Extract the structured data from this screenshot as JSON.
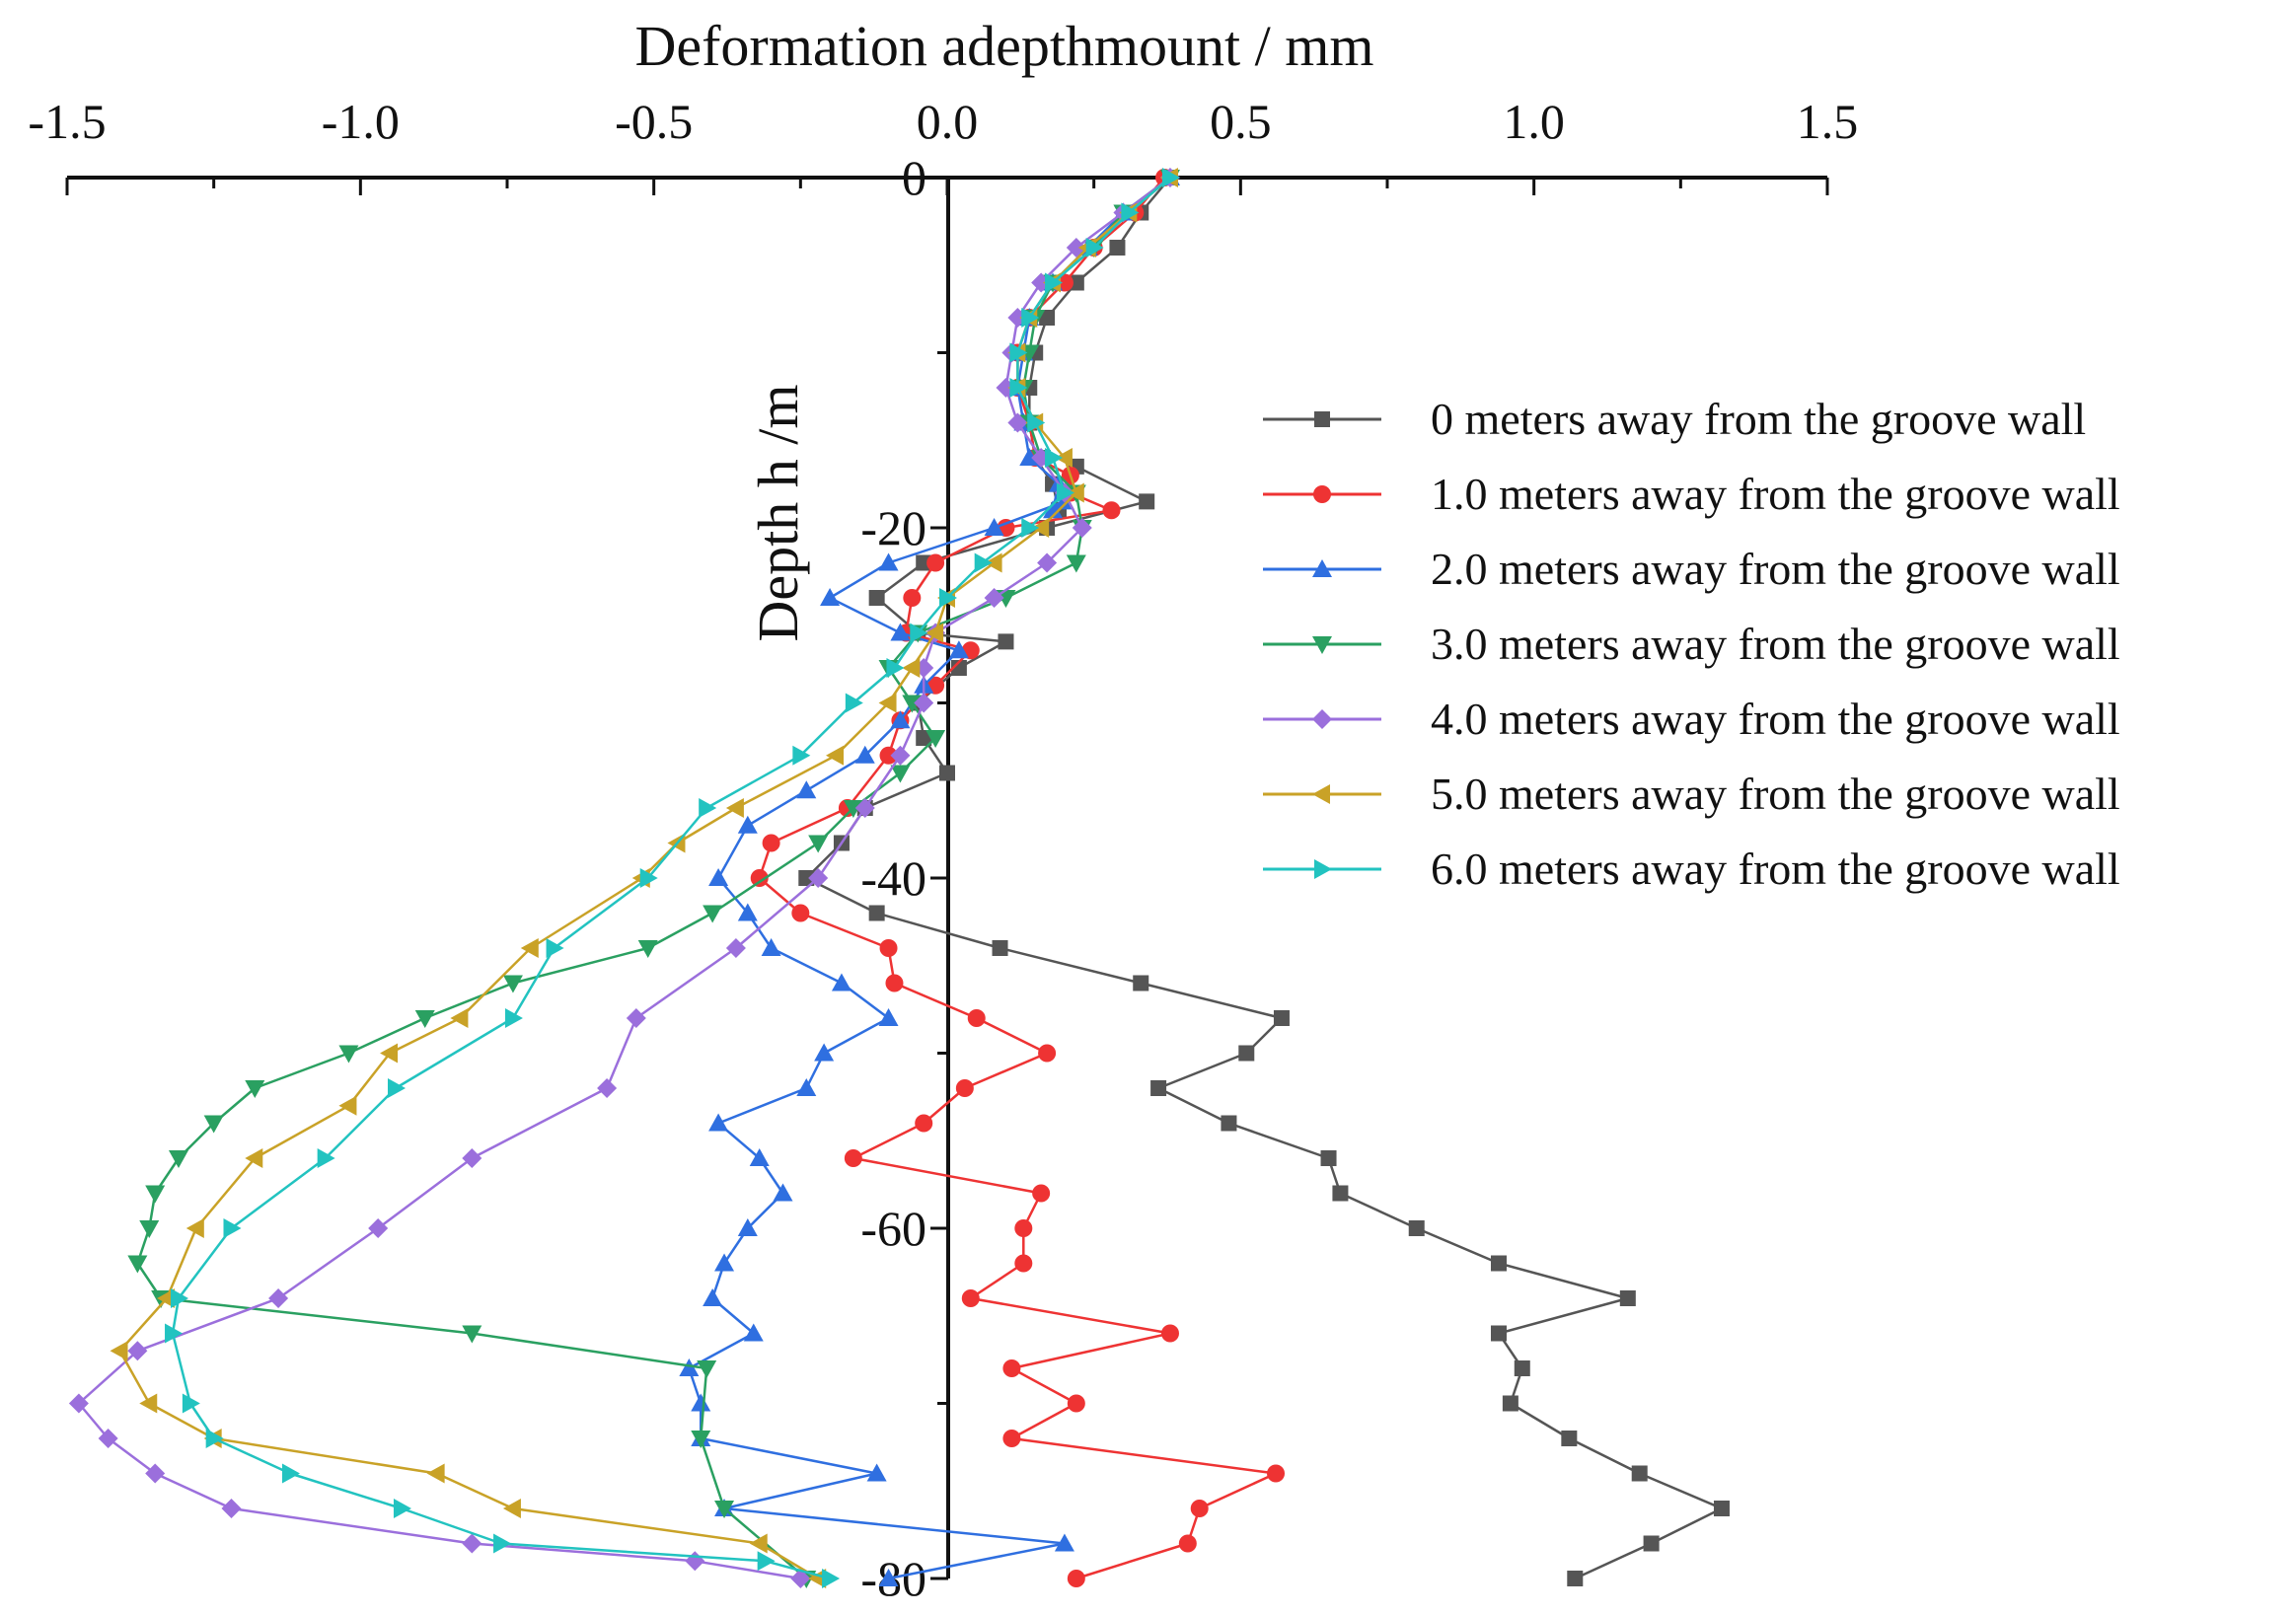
{
  "chart_data": {
    "type": "line",
    "title": "",
    "xlabel": "Deformation adepthmount / mm",
    "ylabel": "Depth h /m",
    "xlim": [
      -1.5,
      1.5
    ],
    "ylim": [
      -80,
      0
    ],
    "x_ticks": [
      -1.5,
      -1.0,
      -0.5,
      0.0,
      0.5,
      1.0,
      1.5
    ],
    "x_tick_labels": [
      "-1.5",
      "-1.0",
      "-0.5",
      "0.0",
      "0.5",
      "1.0",
      "1.5"
    ],
    "y_ticks": [
      0,
      -20,
      -40,
      -60,
      -80
    ],
    "y_tick_labels": [
      "0",
      "-20",
      "-40",
      "-60",
      "-80"
    ],
    "grid": false,
    "legend_position": "right",
    "series": [
      {
        "name": "0 meters away from the groove wall",
        "color": "#555555",
        "marker": "square",
        "x": [
          0.38,
          0.33,
          0.29,
          0.22,
          0.17,
          0.15,
          0.14,
          0.14,
          0.15,
          0.18,
          0.19,
          0.22,
          0.34,
          0.17,
          -0.04,
          -0.12,
          -0.05,
          0.1,
          0.02,
          -0.05,
          -0.04,
          0.0,
          -0.14,
          -0.18,
          -0.24,
          -0.12,
          0.09,
          0.33,
          0.57,
          0.51,
          0.36,
          0.48,
          0.65,
          0.67,
          0.8,
          0.94,
          1.16,
          0.94,
          0.98,
          0.96,
          1.06,
          1.18,
          1.32,
          1.2,
          1.07
        ],
        "y": [
          0,
          -2,
          -4,
          -6,
          -8,
          -10,
          -12,
          -14,
          -16,
          -17.5,
          -19,
          -16.5,
          -18.5,
          -20,
          -22,
          -24,
          -26,
          -26.5,
          -28,
          -30,
          -32,
          -34,
          -36,
          -38,
          -40,
          -42,
          -44,
          -46,
          -48,
          -50,
          -52,
          -54,
          -56,
          -58,
          -60,
          -62,
          -64,
          -66,
          -68,
          -70,
          -72,
          -74,
          -76,
          -78,
          -80
        ]
      },
      {
        "name": "1.0 meters away from the groove wall",
        "color": "#ee3333",
        "marker": "circle",
        "x": [
          0.37,
          0.32,
          0.25,
          0.2,
          0.14,
          0.12,
          0.12,
          0.14,
          0.15,
          0.21,
          0.21,
          0.28,
          0.1,
          -0.02,
          -0.06,
          -0.07,
          0.04,
          -0.02,
          -0.08,
          -0.1,
          -0.17,
          -0.3,
          -0.32,
          -0.25,
          -0.1,
          -0.09,
          0.05,
          0.17,
          0.03,
          -0.04,
          -0.16,
          0.16,
          0.13,
          0.13,
          0.04,
          0.38,
          0.11,
          0.22,
          0.11,
          0.56,
          0.43,
          0.41,
          0.22
        ],
        "y": [
          0,
          -2,
          -4,
          -6,
          -8,
          -10,
          -12,
          -14,
          -16,
          -17,
          -18,
          -19,
          -20,
          -22,
          -24,
          -26,
          -27,
          -29,
          -31,
          -33,
          -36,
          -38,
          -40,
          -42,
          -44,
          -46,
          -48,
          -50,
          -52,
          -54,
          -56,
          -58,
          -60,
          -62,
          -64,
          -66,
          -68,
          -70,
          -72,
          -74,
          -76,
          -78,
          -80
        ]
      },
      {
        "name": "2.0 meters away from the groove wall",
        "color": "#2f6fe0",
        "marker": "triangle-up",
        "x": [
          0.38,
          0.3,
          0.24,
          0.18,
          0.14,
          0.13,
          0.12,
          0.13,
          0.14,
          0.19,
          0.18,
          0.2,
          0.08,
          -0.1,
          -0.2,
          -0.08,
          0.02,
          -0.04,
          -0.08,
          -0.14,
          -0.24,
          -0.34,
          -0.39,
          -0.34,
          -0.3,
          -0.18,
          -0.1,
          -0.21,
          -0.24,
          -0.39,
          -0.32,
          -0.28,
          -0.34,
          -0.38,
          -0.4,
          -0.33,
          -0.44,
          -0.42,
          -0.42,
          -0.12,
          -0.38,
          0.2,
          -0.1
        ],
        "y": [
          0,
          -2,
          -4,
          -6,
          -8,
          -10,
          -12,
          -14,
          -16,
          -17.5,
          -19,
          -18.5,
          -20,
          -22,
          -24,
          -26,
          -27,
          -29,
          -31,
          -33,
          -35,
          -37,
          -40,
          -42,
          -44,
          -46,
          -48,
          -50,
          -52,
          -54,
          -56,
          -58,
          -60,
          -62,
          -64,
          -66,
          -68,
          -70,
          -72,
          -74,
          -76,
          -78,
          -80
        ]
      },
      {
        "name": "3.0 meters away from the groove wall",
        "color": "#2aa061",
        "marker": "triangle-down",
        "x": [
          0.38,
          0.3,
          0.25,
          0.18,
          0.15,
          0.14,
          0.13,
          0.14,
          0.16,
          0.22,
          0.23,
          0.22,
          0.1,
          -0.05,
          -0.1,
          -0.06,
          -0.02,
          -0.08,
          -0.16,
          -0.22,
          -0.4,
          -0.51,
          -0.74,
          -0.89,
          -1.02,
          -1.18,
          -1.25,
          -1.31,
          -1.35,
          -1.36,
          -1.38,
          -1.34,
          -0.81,
          -0.41,
          -0.42,
          -0.38,
          -0.24
        ],
        "y": [
          0,
          -2,
          -4,
          -6,
          -8,
          -10,
          -12,
          -14,
          -16,
          -18,
          -20,
          -22,
          -24,
          -26,
          -28,
          -30,
          -32,
          -34,
          -36,
          -38,
          -42,
          -44,
          -46,
          -48,
          -50,
          -52,
          -54,
          -56,
          -58,
          -60,
          -62,
          -64,
          -66,
          -68,
          -72,
          -76,
          -80
        ]
      },
      {
        "name": "4.0 meters away from the groove wall",
        "color": "#9b6fdc",
        "marker": "diamond",
        "x": [
          0.38,
          0.3,
          0.22,
          0.16,
          0.12,
          0.11,
          0.1,
          0.12,
          0.16,
          0.2,
          0.23,
          0.17,
          0.08,
          -0.02,
          -0.04,
          -0.04,
          -0.08,
          -0.14,
          -0.22,
          -0.36,
          -0.53,
          -0.58,
          -0.81,
          -0.97,
          -1.14,
          -1.38,
          -1.48,
          -1.43,
          -1.35,
          -1.22,
          -0.81,
          -0.43,
          -0.25
        ],
        "y": [
          0,
          -2,
          -4,
          -6,
          -8,
          -10,
          -12,
          -14,
          -16,
          -18,
          -20,
          -22,
          -24,
          -26,
          -28,
          -30,
          -33,
          -36,
          -40,
          -44,
          -48,
          -52,
          -56,
          -60,
          -64,
          -67,
          -70,
          -72,
          -74,
          -76,
          -78,
          -79,
          -80
        ]
      },
      {
        "name": "5.0 meters away from the groove wall",
        "color": "#c9a227",
        "marker": "triangle-left",
        "x": [
          0.38,
          0.31,
          0.24,
          0.18,
          0.14,
          0.12,
          0.12,
          0.15,
          0.2,
          0.22,
          0.16,
          0.08,
          0.0,
          -0.02,
          -0.06,
          -0.1,
          -0.19,
          -0.36,
          -0.46,
          -0.52,
          -0.71,
          -0.83,
          -0.95,
          -1.02,
          -1.18,
          -1.28,
          -1.33,
          -1.41,
          -1.36,
          -1.25,
          -0.87,
          -0.74,
          -0.32,
          -0.22
        ],
        "y": [
          0,
          -2,
          -4,
          -6,
          -8,
          -10,
          -12,
          -14,
          -16,
          -18,
          -20,
          -22,
          -24,
          -26,
          -28,
          -30,
          -33,
          -36,
          -38,
          -40,
          -44,
          -48,
          -50,
          -53,
          -56,
          -60,
          -64,
          -67,
          -70,
          -72,
          -74,
          -76,
          -78,
          -80
        ]
      },
      {
        "name": "6.0 meters away from the groove wall",
        "color": "#22c3c0",
        "marker": "triangle-right",
        "x": [
          0.38,
          0.31,
          0.25,
          0.18,
          0.14,
          0.12,
          0.12,
          0.15,
          0.18,
          0.2,
          0.14,
          0.06,
          0.0,
          -0.05,
          -0.09,
          -0.16,
          -0.25,
          -0.41,
          -0.51,
          -0.67,
          -0.74,
          -0.94,
          -1.06,
          -1.22,
          -1.31,
          -1.32,
          -1.29,
          -1.25,
          -1.12,
          -0.93,
          -0.76,
          -0.31,
          -0.2
        ],
        "y": [
          0,
          -2,
          -4,
          -6,
          -8,
          -10,
          -12,
          -14,
          -16,
          -18,
          -20,
          -22,
          -24,
          -26,
          -28,
          -30,
          -33,
          -36,
          -40,
          -44,
          -48,
          -52,
          -56,
          -60,
          -64,
          -66,
          -70,
          -72,
          -74,
          -76,
          -78,
          -79,
          -80
        ]
      }
    ]
  }
}
